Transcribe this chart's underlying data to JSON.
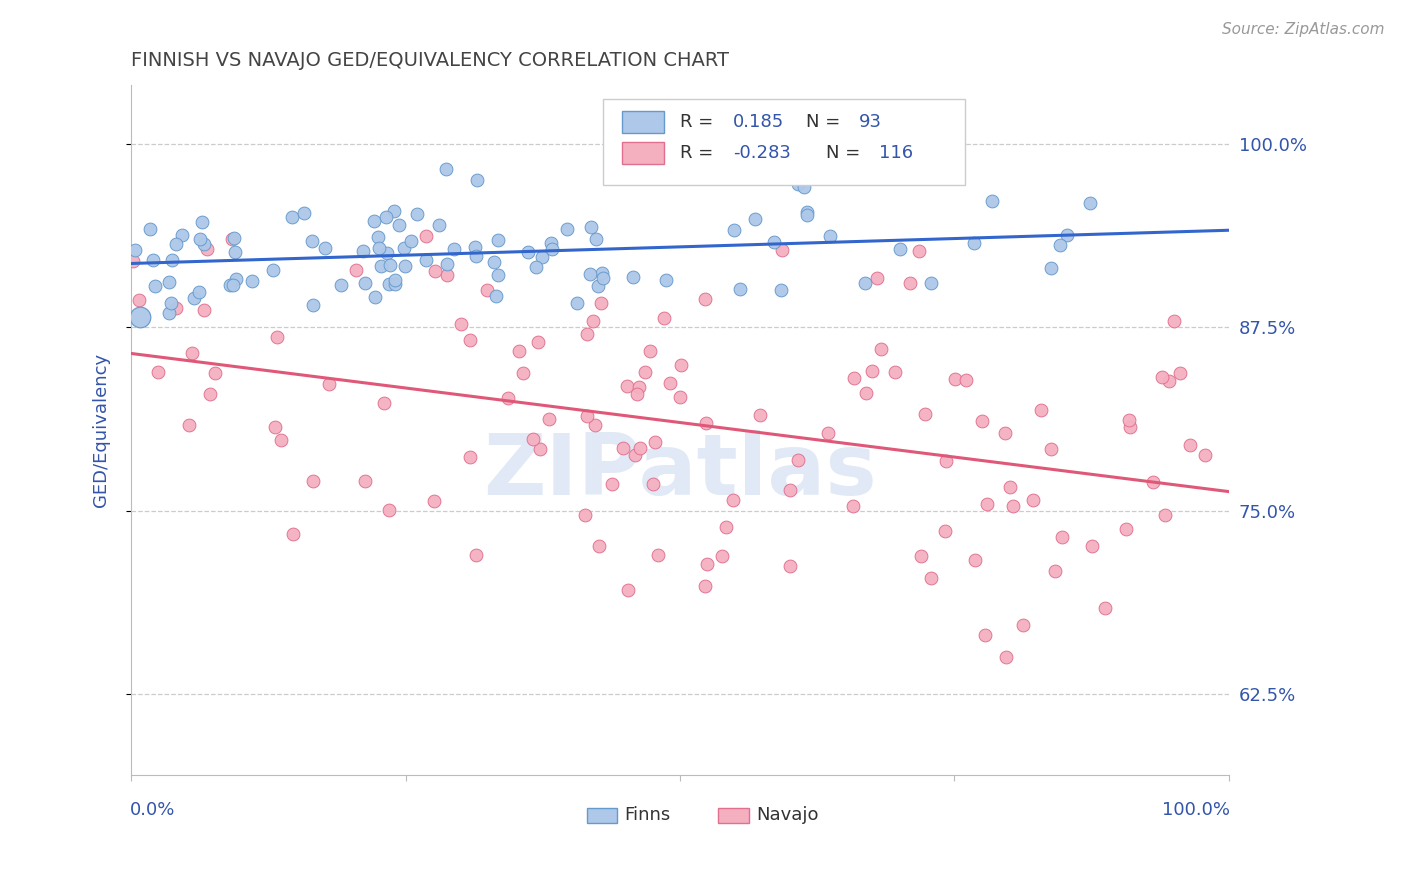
{
  "title": "FINNISH VS NAVAJO GED/EQUIVALENCY CORRELATION CHART",
  "source": "Source: ZipAtlas.com",
  "ylabel": "GED/Equivalency",
  "ytick_labels": [
    "62.5%",
    "75.0%",
    "87.5%",
    "100.0%"
  ],
  "ytick_values": [
    0.625,
    0.75,
    0.875,
    1.0
  ],
  "xmin": 0.0,
  "xmax": 1.0,
  "ymin": 0.57,
  "ymax": 1.04,
  "finns_color": "#adc8e8",
  "navajo_color": "#f5b0c0",
  "finns_edge": "#6699cc",
  "navajo_edge": "#e07090",
  "trend_finns_color": "#3366cc",
  "trend_navajo_color": "#e05878",
  "background_color": "#ffffff",
  "grid_color": "#cccccc",
  "title_color": "#444444",
  "axis_label_color": "#3355aa",
  "watermark_color": "#c8d8ee",
  "finns_seed": 12,
  "navajo_seed": 7,
  "legend_text_color": "#3355aa"
}
